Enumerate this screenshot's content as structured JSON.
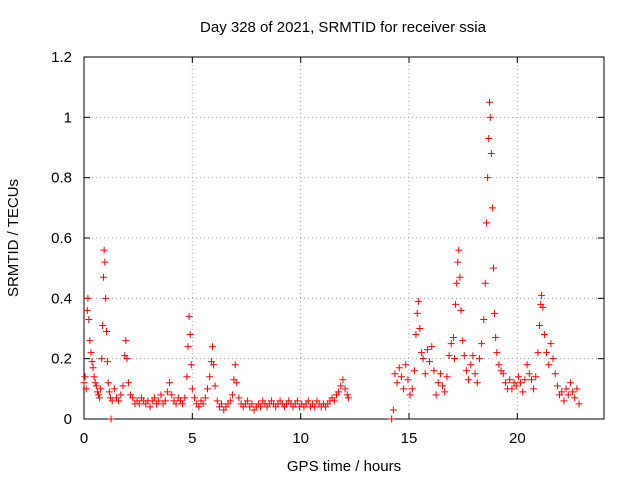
{
  "chart_data": {
    "type": "scatter",
    "title": "Day 328 of 2021, SRMTID for receiver ssia",
    "xlabel": "GPS time / hours",
    "ylabel": "SRMTID / TECUs",
    "xlim": [
      0,
      24
    ],
    "ylim": [
      0,
      1.2
    ],
    "x_ticks": [
      0,
      5,
      10,
      15,
      20
    ],
    "x_tick_labels": [
      "0",
      "5",
      "10",
      "15",
      "20"
    ],
    "y_ticks": [
      0,
      0.2,
      0.4,
      0.6,
      0.8,
      1.0,
      1.2
    ],
    "y_tick_labels": [
      "0",
      "0.2",
      "0.4",
      "0.6",
      "0.8",
      "1",
      "1.2"
    ],
    "grid": true,
    "marker": "+",
    "color": "#ff0000",
    "series": [
      {
        "name": "SRMTID",
        "points": [
          [
            0.0,
            0.12
          ],
          [
            0.05,
            0.14
          ],
          [
            0.1,
            0.1
          ],
          [
            0.15,
            0.36
          ],
          [
            0.18,
            0.4
          ],
          [
            0.22,
            0.33
          ],
          [
            0.27,
            0.26
          ],
          [
            0.32,
            0.22
          ],
          [
            0.37,
            0.19
          ],
          [
            0.42,
            0.17
          ],
          [
            0.47,
            0.14
          ],
          [
            0.52,
            0.12
          ],
          [
            0.57,
            0.11
          ],
          [
            0.62,
            0.09
          ],
          [
            0.67,
            0.08
          ],
          [
            0.72,
            0.07
          ],
          [
            0.77,
            0.1
          ],
          [
            0.82,
            0.2
          ],
          [
            0.86,
            0.31
          ],
          [
            0.9,
            0.47
          ],
          [
            0.93,
            0.56
          ],
          [
            0.96,
            0.52
          ],
          [
            1.0,
            0.4
          ],
          [
            1.04,
            0.29
          ],
          [
            1.08,
            0.19
          ],
          [
            1.12,
            0.12
          ],
          [
            1.17,
            0.09
          ],
          [
            1.22,
            0.07
          ],
          [
            1.25,
            0.0
          ],
          [
            1.3,
            0.06
          ],
          [
            1.4,
            0.1
          ],
          [
            1.5,
            0.07
          ],
          [
            1.6,
            0.06
          ],
          [
            1.7,
            0.08
          ],
          [
            1.8,
            0.11
          ],
          [
            1.88,
            0.21
          ],
          [
            1.93,
            0.26
          ],
          [
            1.98,
            0.2
          ],
          [
            2.05,
            0.12
          ],
          [
            2.15,
            0.08
          ],
          [
            2.25,
            0.07
          ],
          [
            2.35,
            0.05
          ],
          [
            2.45,
            0.06
          ],
          [
            2.55,
            0.05
          ],
          [
            2.65,
            0.07
          ],
          [
            2.75,
            0.06
          ],
          [
            2.85,
            0.05
          ],
          [
            2.95,
            0.06
          ],
          [
            3.05,
            0.04
          ],
          [
            3.15,
            0.06
          ],
          [
            3.25,
            0.07
          ],
          [
            3.35,
            0.05
          ],
          [
            3.45,
            0.06
          ],
          [
            3.55,
            0.08
          ],
          [
            3.65,
            0.05
          ],
          [
            3.75,
            0.06
          ],
          [
            3.85,
            0.09
          ],
          [
            3.95,
            0.12
          ],
          [
            4.05,
            0.08
          ],
          [
            4.15,
            0.06
          ],
          [
            4.25,
            0.05
          ],
          [
            4.35,
            0.07
          ],
          [
            4.45,
            0.06
          ],
          [
            4.55,
            0.05
          ],
          [
            4.65,
            0.07
          ],
          [
            4.75,
            0.14
          ],
          [
            4.8,
            0.24
          ],
          [
            4.85,
            0.34
          ],
          [
            4.9,
            0.28
          ],
          [
            4.95,
            0.18
          ],
          [
            5.0,
            0.1
          ],
          [
            5.1,
            0.07
          ],
          [
            5.2,
            0.05
          ],
          [
            5.3,
            0.04
          ],
          [
            5.4,
            0.06
          ],
          [
            5.5,
            0.05
          ],
          [
            5.6,
            0.07
          ],
          [
            5.7,
            0.1
          ],
          [
            5.8,
            0.14
          ],
          [
            5.88,
            0.19
          ],
          [
            5.93,
            0.24
          ],
          [
            5.98,
            0.18
          ],
          [
            6.05,
            0.11
          ],
          [
            6.15,
            0.06
          ],
          [
            6.25,
            0.04
          ],
          [
            6.35,
            0.05
          ],
          [
            6.45,
            0.03
          ],
          [
            6.55,
            0.04
          ],
          [
            6.65,
            0.05
          ],
          [
            6.75,
            0.06
          ],
          [
            6.85,
            0.08
          ],
          [
            6.92,
            0.13
          ],
          [
            6.98,
            0.18
          ],
          [
            7.05,
            0.12
          ],
          [
            7.15,
            0.07
          ],
          [
            7.25,
            0.05
          ],
          [
            7.35,
            0.04
          ],
          [
            7.45,
            0.05
          ],
          [
            7.55,
            0.06
          ],
          [
            7.65,
            0.04
          ],
          [
            7.75,
            0.05
          ],
          [
            7.85,
            0.03
          ],
          [
            7.95,
            0.04
          ],
          [
            8.05,
            0.05
          ],
          [
            8.15,
            0.04
          ],
          [
            8.25,
            0.06
          ],
          [
            8.35,
            0.05
          ],
          [
            8.45,
            0.04
          ],
          [
            8.55,
            0.05
          ],
          [
            8.65,
            0.06
          ],
          [
            8.75,
            0.05
          ],
          [
            8.85,
            0.04
          ],
          [
            8.95,
            0.05
          ],
          [
            9.05,
            0.06
          ],
          [
            9.15,
            0.05
          ],
          [
            9.25,
            0.04
          ],
          [
            9.35,
            0.05
          ],
          [
            9.45,
            0.06
          ],
          [
            9.55,
            0.05
          ],
          [
            9.65,
            0.04
          ],
          [
            9.75,
            0.05
          ],
          [
            9.85,
            0.06
          ],
          [
            9.95,
            0.04
          ],
          [
            10.05,
            0.05
          ],
          [
            10.15,
            0.04
          ],
          [
            10.25,
            0.05
          ],
          [
            10.35,
            0.06
          ],
          [
            10.45,
            0.04
          ],
          [
            10.55,
            0.05
          ],
          [
            10.65,
            0.04
          ],
          [
            10.75,
            0.06
          ],
          [
            10.85,
            0.05
          ],
          [
            10.95,
            0.04
          ],
          [
            11.05,
            0.05
          ],
          [
            11.15,
            0.04
          ],
          [
            11.25,
            0.05
          ],
          [
            11.35,
            0.06
          ],
          [
            11.45,
            0.07
          ],
          [
            11.55,
            0.06
          ],
          [
            11.65,
            0.08
          ],
          [
            11.75,
            0.09
          ],
          [
            11.85,
            0.11
          ],
          [
            11.95,
            0.13
          ],
          [
            12.05,
            0.1
          ],
          [
            12.15,
            0.08
          ],
          [
            12.2,
            0.07
          ],
          [
            14.2,
            0.0
          ],
          [
            14.28,
            0.03
          ],
          [
            14.35,
            0.15
          ],
          [
            14.45,
            0.12
          ],
          [
            14.55,
            0.17
          ],
          [
            14.65,
            0.14
          ],
          [
            14.75,
            0.1
          ],
          [
            14.85,
            0.18
          ],
          [
            14.95,
            0.13
          ],
          [
            15.05,
            0.08
          ],
          [
            15.15,
            0.1
          ],
          [
            15.25,
            0.16
          ],
          [
            15.32,
            0.28
          ],
          [
            15.38,
            0.35
          ],
          [
            15.43,
            0.39
          ],
          [
            15.5,
            0.3
          ],
          [
            15.58,
            0.22
          ],
          [
            15.65,
            0.2
          ],
          [
            15.75,
            0.15
          ],
          [
            15.85,
            0.23
          ],
          [
            15.95,
            0.19
          ],
          [
            16.05,
            0.24
          ],
          [
            16.15,
            0.16
          ],
          [
            16.25,
            0.08
          ],
          [
            16.35,
            0.12
          ],
          [
            16.45,
            0.15
          ],
          [
            16.55,
            0.11
          ],
          [
            16.65,
            0.09
          ],
          [
            16.75,
            0.14
          ],
          [
            16.85,
            0.21
          ],
          [
            16.95,
            0.25
          ],
          [
            17.05,
            0.27
          ],
          [
            17.1,
            0.2
          ],
          [
            17.15,
            0.38
          ],
          [
            17.2,
            0.45
          ],
          [
            17.25,
            0.52
          ],
          [
            17.3,
            0.56
          ],
          [
            17.35,
            0.47
          ],
          [
            17.4,
            0.36
          ],
          [
            17.48,
            0.26
          ],
          [
            17.55,
            0.21
          ],
          [
            17.65,
            0.16
          ],
          [
            17.75,
            0.13
          ],
          [
            17.85,
            0.18
          ],
          [
            17.95,
            0.21
          ],
          [
            18.05,
            0.15
          ],
          [
            18.15,
            0.12
          ],
          [
            18.25,
            0.2
          ],
          [
            18.35,
            0.25
          ],
          [
            18.45,
            0.33
          ],
          [
            18.52,
            0.45
          ],
          [
            18.58,
            0.65
          ],
          [
            18.63,
            0.8
          ],
          [
            18.68,
            0.93
          ],
          [
            18.72,
            1.05
          ],
          [
            18.75,
            1.0
          ],
          [
            18.8,
            0.88
          ],
          [
            18.85,
            0.7
          ],
          [
            18.9,
            0.5
          ],
          [
            18.95,
            0.35
          ],
          [
            19.0,
            0.27
          ],
          [
            19.05,
            0.22
          ],
          [
            19.15,
            0.18
          ],
          [
            19.25,
            0.16
          ],
          [
            19.35,
            0.15
          ],
          [
            19.45,
            0.12
          ],
          [
            19.55,
            0.1
          ],
          [
            19.65,
            0.13
          ],
          [
            19.75,
            0.1
          ],
          [
            19.85,
            0.12
          ],
          [
            19.95,
            0.11
          ],
          [
            20.05,
            0.14
          ],
          [
            20.15,
            0.12
          ],
          [
            20.25,
            0.09
          ],
          [
            20.35,
            0.13
          ],
          [
            20.45,
            0.18
          ],
          [
            20.55,
            0.15
          ],
          [
            20.65,
            0.13
          ],
          [
            20.75,
            0.1
          ],
          [
            20.85,
            0.14
          ],
          [
            20.95,
            0.22
          ],
          [
            21.02,
            0.31
          ],
          [
            21.08,
            0.38
          ],
          [
            21.12,
            0.41
          ],
          [
            21.18,
            0.37
          ],
          [
            21.25,
            0.28
          ],
          [
            21.35,
            0.22
          ],
          [
            21.45,
            0.18
          ],
          [
            21.55,
            0.25
          ],
          [
            21.65,
            0.2
          ],
          [
            21.75,
            0.15
          ],
          [
            21.85,
            0.11
          ],
          [
            21.95,
            0.08
          ],
          [
            22.05,
            0.09
          ],
          [
            22.15,
            0.06
          ],
          [
            22.25,
            0.1
          ],
          [
            22.35,
            0.08
          ],
          [
            22.45,
            0.12
          ],
          [
            22.55,
            0.09
          ],
          [
            22.65,
            0.07
          ],
          [
            22.75,
            0.1
          ],
          [
            22.85,
            0.05
          ]
        ]
      }
    ]
  }
}
